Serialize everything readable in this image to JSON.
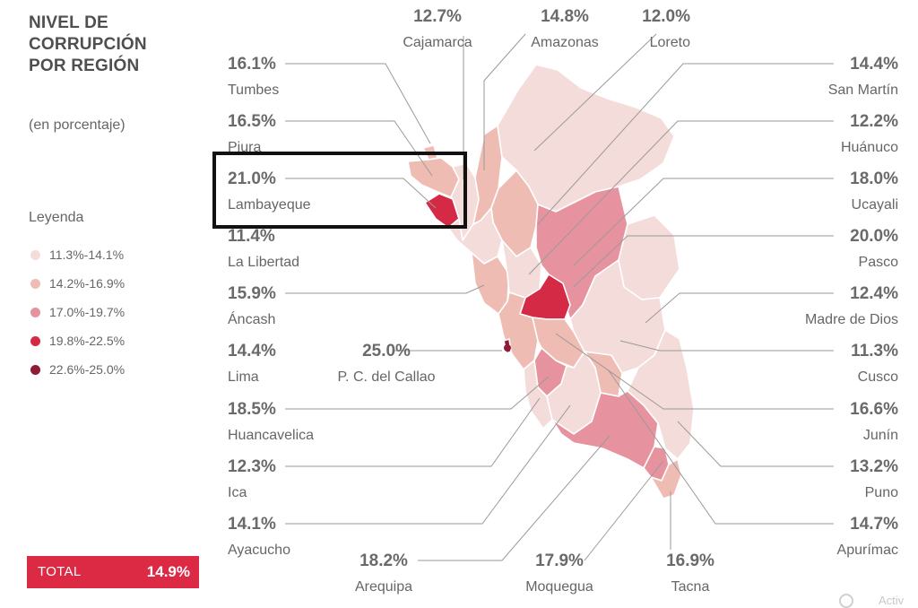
{
  "title_lines": [
    "NIVEL DE",
    "CORRUPCIÓN",
    "POR REGIÓN"
  ],
  "subtitle": "(en porcentaje)",
  "legend": {
    "title": "Leyenda",
    "items": [
      {
        "label": "11.3%-14.1%",
        "color": "#f3dcda"
      },
      {
        "label": "14.2%-16.9%",
        "color": "#efbcb3"
      },
      {
        "label": "17.0%-19.7%",
        "color": "#e7939f"
      },
      {
        "label": "19.8%-22.5%",
        "color": "#d42a46"
      },
      {
        "label": "22.6%-25.0%",
        "color": "#8e1c35"
      }
    ]
  },
  "total": {
    "label": "TOTAL",
    "value": "14.9%"
  },
  "watermark": "Activ",
  "chart_data": {
    "type": "choropleth map",
    "unit": "%",
    "highlighted": "Lambayeque",
    "regions": [
      {
        "name": "Cajamarca",
        "value": 12.7,
        "label": "12.7%"
      },
      {
        "name": "Amazonas",
        "value": 14.8,
        "label": "14.8%"
      },
      {
        "name": "Loreto",
        "value": 12.0,
        "label": "12.0%"
      },
      {
        "name": "Tumbes",
        "value": 16.1,
        "label": "16.1%"
      },
      {
        "name": "San Martín",
        "value": 14.4,
        "label": "14.4%"
      },
      {
        "name": "Piura",
        "value": 16.5,
        "label": "16.5%"
      },
      {
        "name": "Huánuco",
        "value": 12.2,
        "label": "12.2%"
      },
      {
        "name": "Lambayeque",
        "value": 21.0,
        "label": "21.0%"
      },
      {
        "name": "Ucayali",
        "value": 18.0,
        "label": "18.0%"
      },
      {
        "name": "La Libertad",
        "value": 11.4,
        "label": "11.4%"
      },
      {
        "name": "Pasco",
        "value": 20.0,
        "label": "20.0%"
      },
      {
        "name": "Áncash",
        "value": 15.9,
        "label": "15.9%"
      },
      {
        "name": "Madre de Dios",
        "value": 12.4,
        "label": "12.4%"
      },
      {
        "name": "Lima",
        "value": 14.4,
        "label": "14.4%"
      },
      {
        "name": "P. C. del Callao",
        "value": 25.0,
        "label": "25.0%"
      },
      {
        "name": "Cusco",
        "value": 11.3,
        "label": "11.3%"
      },
      {
        "name": "Huancavelica",
        "value": 18.5,
        "label": "18.5%"
      },
      {
        "name": "Junín",
        "value": 16.6,
        "label": "16.6%"
      },
      {
        "name": "Ica",
        "value": 12.3,
        "label": "12.3%"
      },
      {
        "name": "Puno",
        "value": 13.2,
        "label": "13.2%"
      },
      {
        "name": "Ayacucho",
        "value": 14.1,
        "label": "14.1%"
      },
      {
        "name": "Apurímac",
        "value": 14.7,
        "label": "14.7%"
      },
      {
        "name": "Arequipa",
        "value": 18.2,
        "label": "18.2%"
      },
      {
        "name": "Moquegua",
        "value": 17.9,
        "label": "17.9%"
      },
      {
        "name": "Tacna",
        "value": 16.9,
        "label": "16.9%"
      }
    ]
  }
}
